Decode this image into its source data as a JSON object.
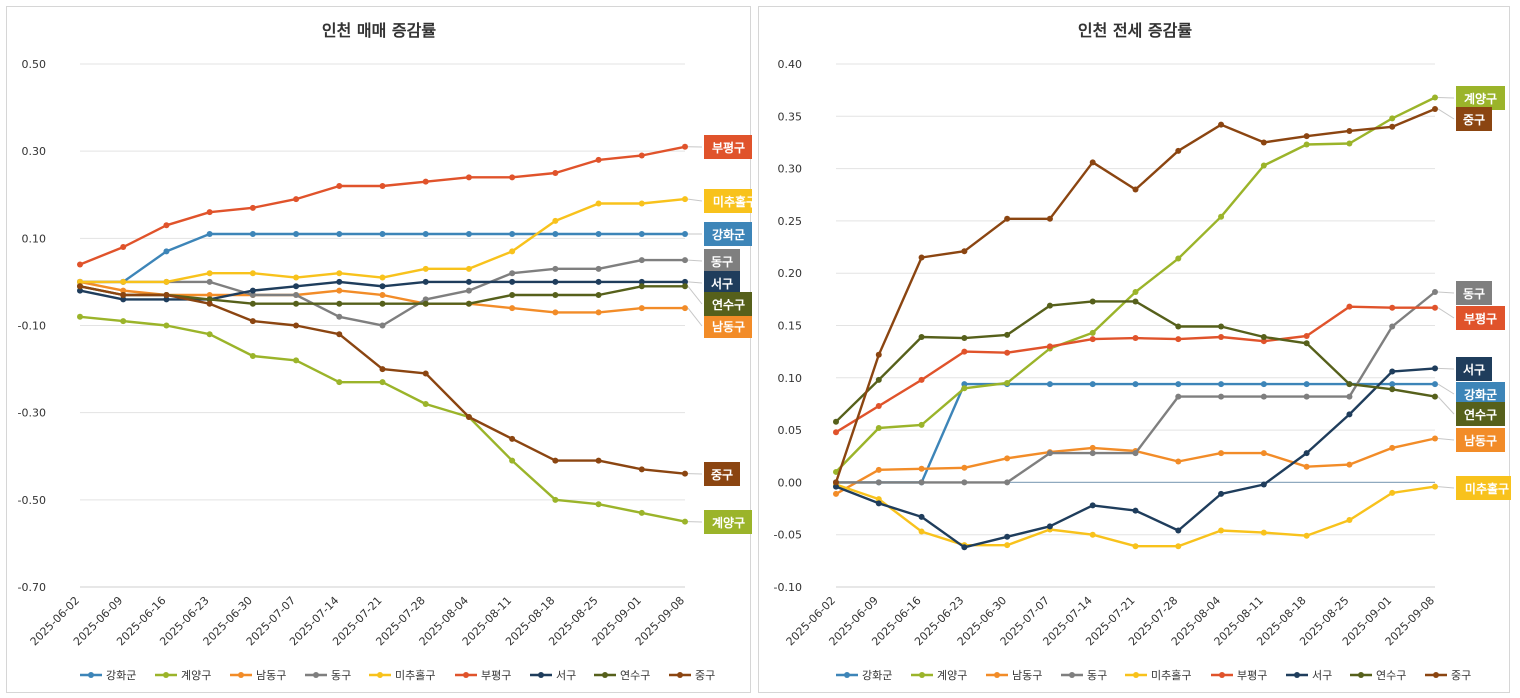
{
  "colors": {
    "강화군": "#3d85b8",
    "계양구": "#9bb42a",
    "남동구": "#f28c28",
    "동구": "#7f7f7f",
    "미추홀구": "#f8c21c",
    "부평구": "#e0532b",
    "서구": "#1f3d5c",
    "연수구": "#56601b",
    "중구": "#8b4511"
  },
  "chart_data": [
    {
      "type": "line",
      "title": "인천 매매 증감률",
      "x": [
        "2025-06-02",
        "2025-06-09",
        "2025-06-16",
        "2025-06-23",
        "2025-06-30",
        "2025-07-07",
        "2025-07-14",
        "2025-07-21",
        "2025-07-28",
        "2025-08-04",
        "2025-08-11",
        "2025-08-18",
        "2025-08-25",
        "2025-09-01",
        "2025-09-08"
      ],
      "yticks": [
        "0.50",
        "0.30",
        "0.10",
        "-0.10",
        "-0.30",
        "-0.50",
        "-0.70"
      ],
      "ylim": [
        -0.7,
        0.5
      ],
      "legend_position": "bottom",
      "series": [
        {
          "name": "강화군",
          "values": [
            0.0,
            0.0,
            0.07,
            0.11,
            0.11,
            0.11,
            0.11,
            0.11,
            0.11,
            0.11,
            0.11,
            0.11,
            0.11,
            0.11,
            0.11
          ]
        },
        {
          "name": "계양구",
          "values": [
            -0.08,
            -0.09,
            -0.1,
            -0.12,
            -0.17,
            -0.18,
            -0.23,
            -0.23,
            -0.28,
            -0.31,
            -0.41,
            -0.5,
            -0.51,
            -0.53,
            -0.55
          ]
        },
        {
          "name": "남동구",
          "values": [
            0.0,
            -0.02,
            -0.03,
            -0.03,
            -0.03,
            -0.03,
            -0.02,
            -0.03,
            -0.05,
            -0.05,
            -0.06,
            -0.07,
            -0.07,
            -0.06,
            -0.06
          ]
        },
        {
          "name": "동구",
          "values": [
            0.0,
            0.0,
            0.0,
            0.0,
            -0.03,
            -0.03,
            -0.08,
            -0.1,
            -0.04,
            -0.02,
            0.02,
            0.03,
            0.03,
            0.05,
            0.05
          ]
        },
        {
          "name": "미추홀구",
          "values": [
            0.0,
            0.0,
            0.0,
            0.02,
            0.02,
            0.01,
            0.02,
            0.01,
            0.03,
            0.03,
            0.07,
            0.14,
            0.18,
            0.18,
            0.19
          ]
        },
        {
          "name": "부평구",
          "values": [
            0.04,
            0.08,
            0.13,
            0.16,
            0.17,
            0.19,
            0.22,
            0.22,
            0.23,
            0.24,
            0.24,
            0.25,
            0.28,
            0.29,
            0.31
          ]
        },
        {
          "name": "서구",
          "values": [
            -0.02,
            -0.04,
            -0.04,
            -0.04,
            -0.02,
            -0.01,
            0.0,
            -0.01,
            0.0,
            0.0,
            0.0,
            0.0,
            0.0,
            0.0,
            0.0
          ]
        },
        {
          "name": "연수구",
          "values": [
            -0.01,
            -0.03,
            -0.03,
            -0.04,
            -0.05,
            -0.05,
            -0.05,
            -0.05,
            -0.05,
            -0.05,
            -0.03,
            -0.03,
            -0.03,
            -0.01,
            -0.01
          ]
        },
        {
          "name": "중구",
          "values": [
            -0.01,
            -0.03,
            -0.03,
            -0.05,
            -0.09,
            -0.1,
            -0.12,
            -0.2,
            -0.21,
            -0.31,
            -0.36,
            -0.41,
            -0.41,
            -0.43,
            -0.44
          ]
        }
      ]
    },
    {
      "type": "line",
      "title": "인천 전세 증감률",
      "x": [
        "2025-06-02",
        "2025-06-09",
        "2025-06-16",
        "2025-06-23",
        "2025-06-30",
        "2025-07-07",
        "2025-07-14",
        "2025-07-21",
        "2025-07-28",
        "2025-08-04",
        "2025-08-11",
        "2025-08-18",
        "2025-08-25",
        "2025-09-01",
        "2025-09-08"
      ],
      "yticks": [
        "0.40",
        "0.35",
        "0.30",
        "0.25",
        "0.20",
        "0.15",
        "0.10",
        "0.05",
        "0.00",
        "-0.05",
        "-0.10"
      ],
      "ylim": [
        -0.1,
        0.4
      ],
      "legend_position": "bottom",
      "series": [
        {
          "name": "강화군",
          "values": [
            0.0,
            0.0,
            0.0,
            0.094,
            0.094,
            0.094,
            0.094,
            0.094,
            0.094,
            0.094,
            0.094,
            0.094,
            0.094,
            0.094,
            0.094
          ]
        },
        {
          "name": "계양구",
          "values": [
            0.01,
            0.052,
            0.055,
            0.09,
            0.095,
            0.128,
            0.143,
            0.182,
            0.214,
            0.254,
            0.303,
            0.323,
            0.324,
            0.348,
            0.368
          ]
        },
        {
          "name": "남동구",
          "values": [
            -0.011,
            0.012,
            0.013,
            0.014,
            0.023,
            0.029,
            0.033,
            0.03,
            0.02,
            0.028,
            0.028,
            0.015,
            0.017,
            0.033,
            0.042
          ]
        },
        {
          "name": "동구",
          "values": [
            0.0,
            0.0,
            0.0,
            0.0,
            0.0,
            0.028,
            0.028,
            0.028,
            0.082,
            0.082,
            0.082,
            0.082,
            0.082,
            0.149,
            0.182
          ]
        },
        {
          "name": "미추홀구",
          "values": [
            -0.002,
            -0.016,
            -0.047,
            -0.06,
            -0.06,
            -0.045,
            -0.05,
            -0.061,
            -0.061,
            -0.046,
            -0.048,
            -0.051,
            -0.036,
            -0.01,
            -0.004
          ]
        },
        {
          "name": "부평구",
          "values": [
            0.048,
            0.073,
            0.098,
            0.125,
            0.124,
            0.13,
            0.137,
            0.138,
            0.137,
            0.139,
            0.135,
            0.14,
            0.168,
            0.167,
            0.167
          ]
        },
        {
          "name": "서구",
          "values": [
            -0.004,
            -0.02,
            -0.033,
            -0.062,
            -0.052,
            -0.042,
            -0.022,
            -0.027,
            -0.046,
            -0.011,
            -0.002,
            0.028,
            0.065,
            0.106,
            0.109
          ]
        },
        {
          "name": "연수구",
          "values": [
            0.058,
            0.098,
            0.139,
            0.138,
            0.141,
            0.169,
            0.173,
            0.173,
            0.149,
            0.149,
            0.139,
            0.133,
            0.094,
            0.089,
            0.082
          ]
        },
        {
          "name": "중구",
          "values": [
            0.0,
            0.122,
            0.215,
            0.221,
            0.252,
            0.252,
            0.306,
            0.28,
            0.317,
            0.342,
            0.325,
            0.331,
            0.336,
            0.34,
            0.357
          ]
        }
      ]
    }
  ]
}
